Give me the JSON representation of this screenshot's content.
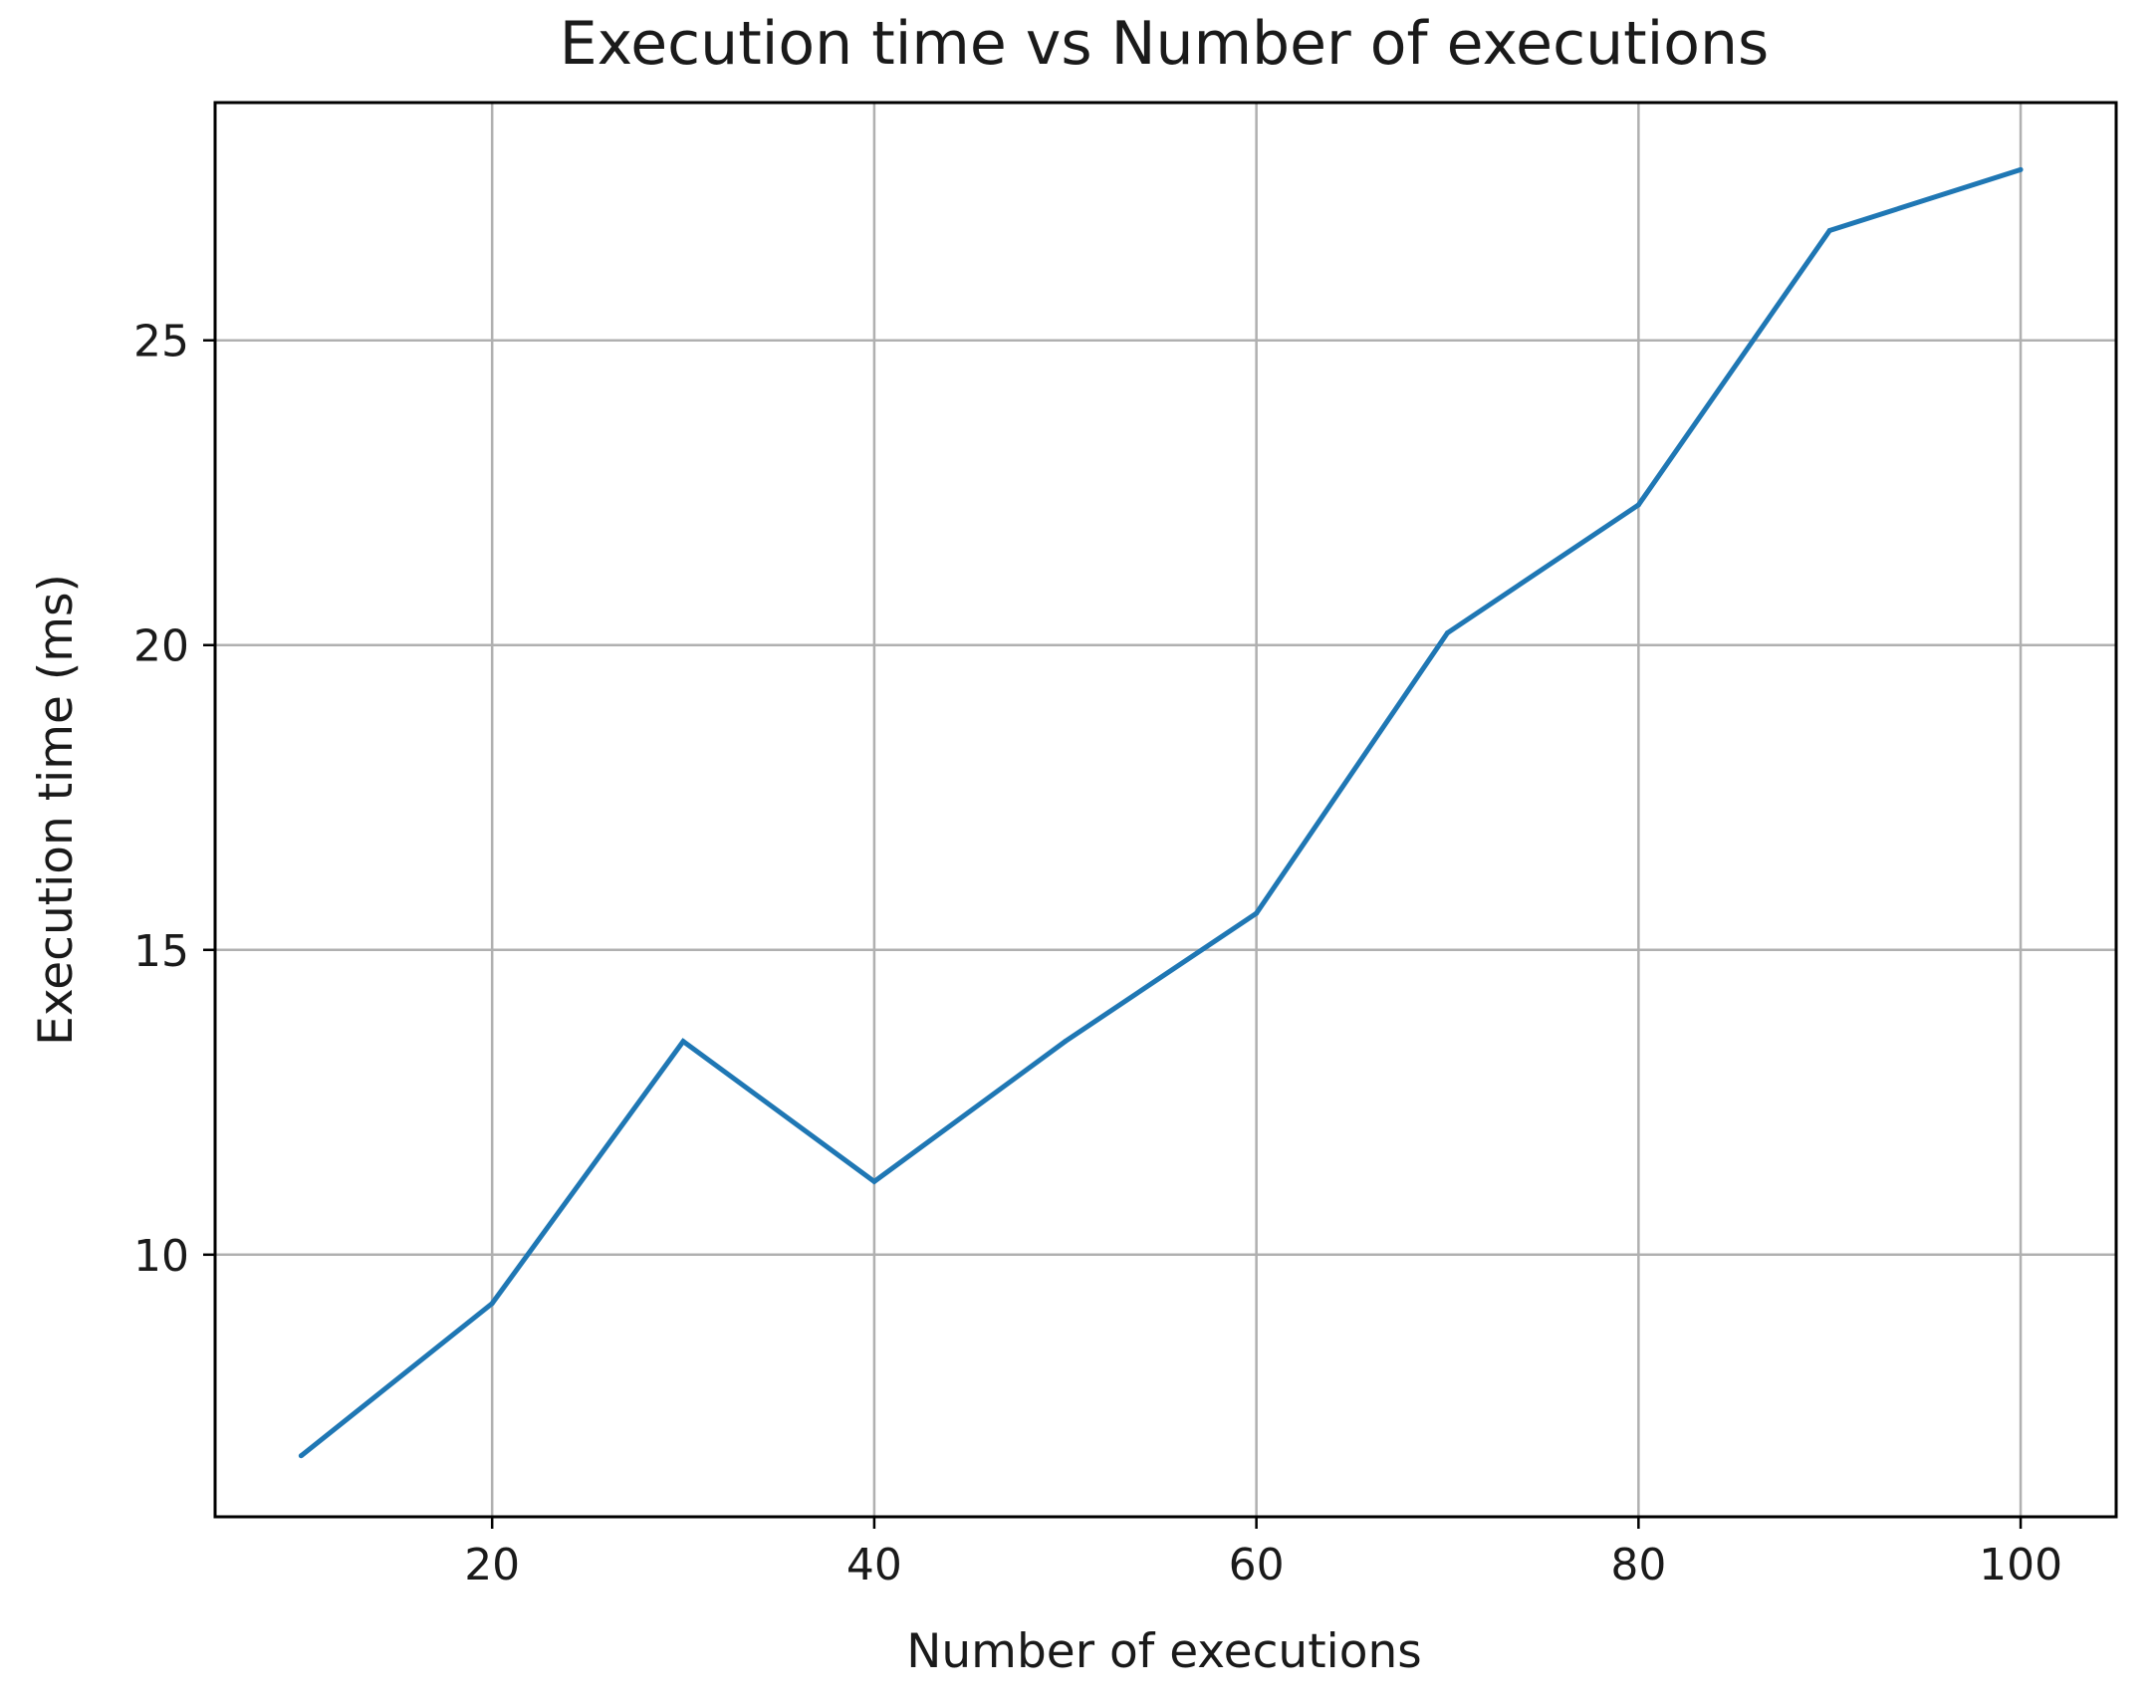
{
  "chart_data": {
    "type": "line",
    "title": "Execution time vs Number of executions",
    "xlabel": "Number of executions",
    "ylabel": "Execution time (ms)",
    "x": [
      10,
      20,
      30,
      40,
      50,
      60,
      70,
      80,
      90,
      100
    ],
    "series": [
      {
        "values": [
          6.7,
          9.2,
          13.5,
          11.2,
          13.5,
          15.6,
          20.2,
          22.3,
          26.8,
          27.8
        ]
      }
    ],
    "xlim": [
      5.5,
      105
    ],
    "ylim": [
      5.7,
      28.9
    ],
    "xticks": [
      20,
      40,
      60,
      80,
      100
    ],
    "xtick_labels": [
      "20",
      "40",
      "60",
      "80",
      "100"
    ],
    "yticks": [
      10,
      15,
      20,
      25
    ],
    "ytick_labels": [
      "10",
      "15",
      "20",
      "25"
    ],
    "grid": true,
    "legend": "none",
    "line_color": "#1f77b4"
  }
}
